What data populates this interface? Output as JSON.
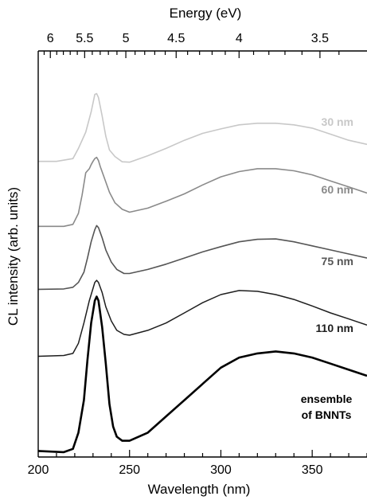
{
  "chart_data": {
    "type": "line",
    "xlabel": "Wavelength (nm)",
    "ylabel": "CL intensity (arb. units)",
    "top_axis_label": "Energy (eV)",
    "xlim": [
      200,
      380
    ],
    "x_ticks": [
      {
        "value": 200,
        "label": "200"
      },
      {
        "value": 250,
        "label": "250"
      },
      {
        "value": 300,
        "label": "300"
      },
      {
        "value": 350,
        "label": "350"
      }
    ],
    "top_ticks": [
      {
        "value": 6,
        "label": "6"
      },
      {
        "value": 5.5,
        "label": "5.5"
      },
      {
        "value": 5,
        "label": "5"
      },
      {
        "value": 4.5,
        "label": "4.5"
      },
      {
        "value": 4,
        "label": "4"
      },
      {
        "value": 3.5,
        "label": "3.5"
      }
    ],
    "y_ticks": "none",
    "grid": false,
    "series": [
      {
        "name": "30 nm",
        "label_lines": [
          "30 nm"
        ],
        "color": "#c8c8c8",
        "points": [
          [
            200,
            0.728
          ],
          [
            210,
            0.728
          ],
          [
            219,
            0.735
          ],
          [
            222,
            0.76
          ],
          [
            226,
            0.8
          ],
          [
            229,
            0.85
          ],
          [
            231,
            0.893
          ],
          [
            232,
            0.895
          ],
          [
            233,
            0.885
          ],
          [
            235,
            0.84
          ],
          [
            237,
            0.79
          ],
          [
            239,
            0.756
          ],
          [
            242,
            0.74
          ],
          [
            246,
            0.727
          ],
          [
            250,
            0.726
          ],
          [
            260,
            0.742
          ],
          [
            270,
            0.76
          ],
          [
            280,
            0.78
          ],
          [
            290,
            0.797
          ],
          [
            300,
            0.808
          ],
          [
            310,
            0.818
          ],
          [
            320,
            0.822
          ],
          [
            330,
            0.822
          ],
          [
            340,
            0.818
          ],
          [
            350,
            0.81
          ],
          [
            360,
            0.795
          ],
          [
            370,
            0.78
          ],
          [
            380,
            0.77
          ]
        ]
      },
      {
        "name": "60 nm",
        "label_lines": [
          "60 nm"
        ],
        "color": "#8a8a8a",
        "points": [
          [
            200,
            0.568
          ],
          [
            214,
            0.568
          ],
          [
            219,
            0.573
          ],
          [
            222,
            0.6
          ],
          [
            224,
            0.645
          ],
          [
            226,
            0.7
          ],
          [
            228,
            0.71
          ],
          [
            229,
            0.72
          ],
          [
            230,
            0.728
          ],
          [
            231,
            0.735
          ],
          [
            232,
            0.738
          ],
          [
            233,
            0.73
          ],
          [
            234,
            0.715
          ],
          [
            236,
            0.69
          ],
          [
            239,
            0.652
          ],
          [
            242,
            0.626
          ],
          [
            246,
            0.61
          ],
          [
            250,
            0.603
          ],
          [
            260,
            0.613
          ],
          [
            270,
            0.63
          ],
          [
            280,
            0.648
          ],
          [
            290,
            0.67
          ],
          [
            300,
            0.69
          ],
          [
            310,
            0.703
          ],
          [
            320,
            0.71
          ],
          [
            330,
            0.71
          ],
          [
            340,
            0.705
          ],
          [
            350,
            0.695
          ],
          [
            360,
            0.68
          ],
          [
            370,
            0.665
          ],
          [
            380,
            0.65
          ]
        ]
      },
      {
        "name": "75 nm",
        "label_lines": [
          "75 nm"
        ],
        "color": "#555555",
        "points": [
          [
            200,
            0.413
          ],
          [
            214,
            0.414
          ],
          [
            219,
            0.418
          ],
          [
            222,
            0.43
          ],
          [
            225,
            0.455
          ],
          [
            227,
            0.49
          ],
          [
            229,
            0.53
          ],
          [
            231,
            0.56
          ],
          [
            232,
            0.57
          ],
          [
            233,
            0.565
          ],
          [
            235,
            0.54
          ],
          [
            237,
            0.51
          ],
          [
            240,
            0.48
          ],
          [
            243,
            0.462
          ],
          [
            247,
            0.452
          ],
          [
            250,
            0.452
          ],
          [
            260,
            0.462
          ],
          [
            270,
            0.475
          ],
          [
            280,
            0.49
          ],
          [
            290,
            0.505
          ],
          [
            300,
            0.518
          ],
          [
            310,
            0.53
          ],
          [
            320,
            0.536
          ],
          [
            330,
            0.537
          ],
          [
            340,
            0.53
          ],
          [
            350,
            0.52
          ],
          [
            360,
            0.51
          ],
          [
            370,
            0.5
          ],
          [
            380,
            0.49
          ]
        ]
      },
      {
        "name": "110 nm",
        "label_lines": [
          "110 nm"
        ],
        "color": "#1e1e1e",
        "points": [
          [
            200,
            0.248
          ],
          [
            214,
            0.25
          ],
          [
            219,
            0.255
          ],
          [
            222,
            0.28
          ],
          [
            225,
            0.33
          ],
          [
            228,
            0.385
          ],
          [
            230,
            0.415
          ],
          [
            231,
            0.43
          ],
          [
            232,
            0.435
          ],
          [
            233,
            0.43
          ],
          [
            235,
            0.405
          ],
          [
            237,
            0.37
          ],
          [
            240,
            0.335
          ],
          [
            243,
            0.312
          ],
          [
            247,
            0.302
          ],
          [
            250,
            0.3
          ],
          [
            260,
            0.312
          ],
          [
            270,
            0.33
          ],
          [
            280,
            0.355
          ],
          [
            290,
            0.38
          ],
          [
            300,
            0.4
          ],
          [
            310,
            0.41
          ],
          [
            320,
            0.408
          ],
          [
            330,
            0.4
          ],
          [
            340,
            0.388
          ],
          [
            350,
            0.372
          ],
          [
            360,
            0.355
          ],
          [
            370,
            0.34
          ],
          [
            380,
            0.325
          ]
        ]
      },
      {
        "name": "ensemble of BNNTs",
        "label_lines": [
          "ensemble",
          "of BNNTs"
        ],
        "color": "#000000",
        "points": [
          [
            200,
            0.015
          ],
          [
            214,
            0.012
          ],
          [
            219,
            0.02
          ],
          [
            222,
            0.06
          ],
          [
            225,
            0.14
          ],
          [
            227,
            0.24
          ],
          [
            229,
            0.33
          ],
          [
            231,
            0.385
          ],
          [
            232,
            0.395
          ],
          [
            233,
            0.385
          ],
          [
            235,
            0.32
          ],
          [
            237,
            0.23
          ],
          [
            239,
            0.13
          ],
          [
            241,
            0.075
          ],
          [
            243,
            0.05
          ],
          [
            246,
            0.04
          ],
          [
            250,
            0.04
          ],
          [
            260,
            0.06
          ],
          [
            270,
            0.1
          ],
          [
            280,
            0.14
          ],
          [
            290,
            0.18
          ],
          [
            300,
            0.22
          ],
          [
            310,
            0.245
          ],
          [
            320,
            0.255
          ],
          [
            330,
            0.26
          ],
          [
            340,
            0.255
          ],
          [
            350,
            0.245
          ],
          [
            360,
            0.23
          ],
          [
            370,
            0.215
          ],
          [
            380,
            0.2
          ]
        ]
      }
    ]
  }
}
